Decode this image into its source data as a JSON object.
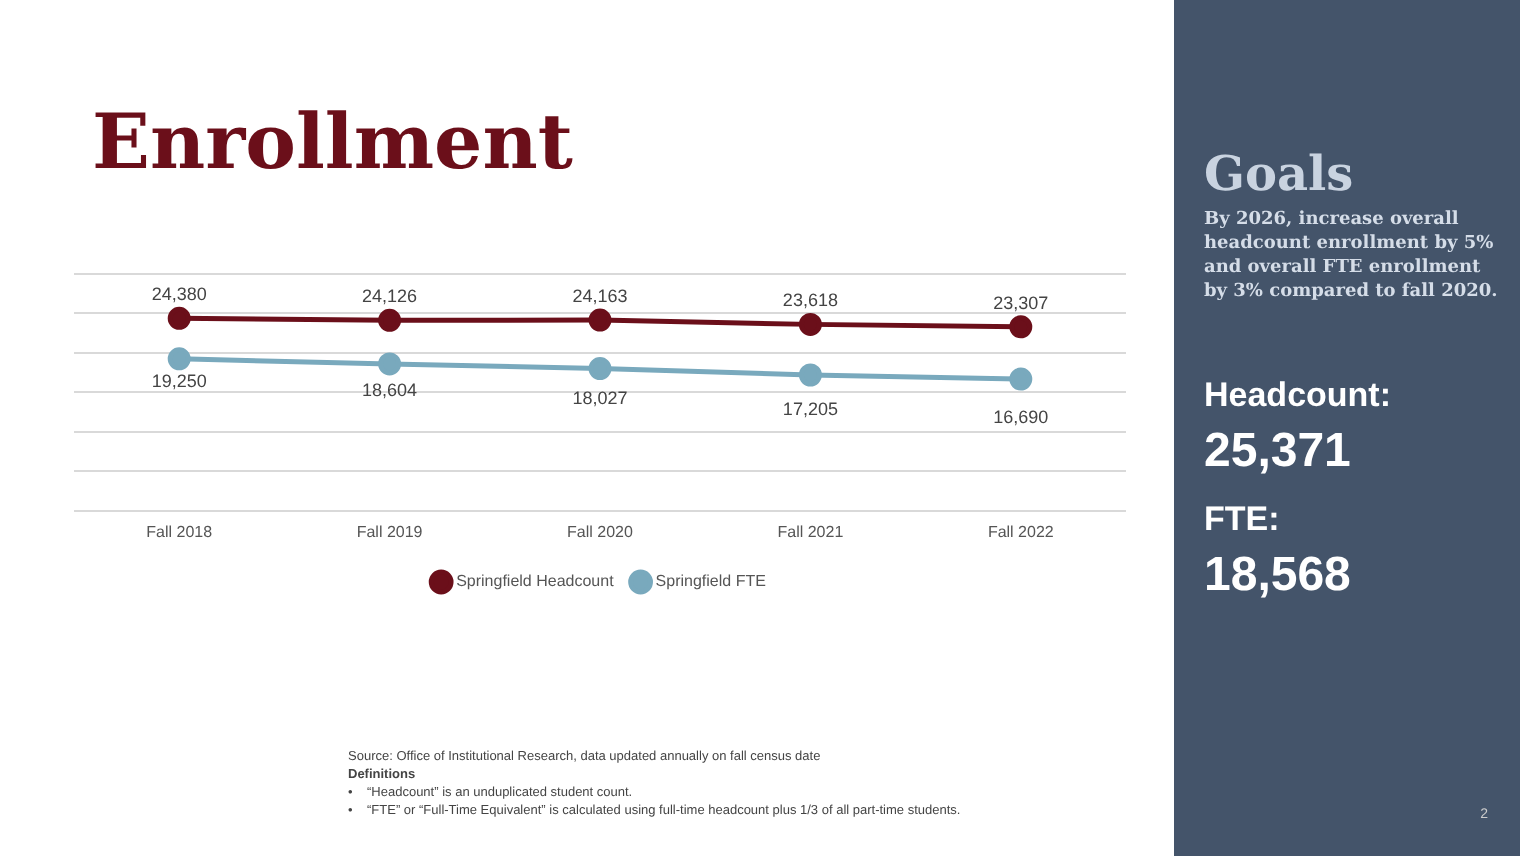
{
  "chart_data": [
    {
      "type": "line",
      "title": "Enrollment",
      "categories": [
        "Fall 2018",
        "Fall 2019",
        "Fall 2020",
        "Fall 2021",
        "Fall 2022"
      ],
      "series": [
        {
          "name": "Springfield Headcount",
          "color": "#6b0f1a",
          "values": [
            24380,
            24126,
            24163,
            23618,
            23307
          ],
          "value_labels": [
            "24,380",
            "24,126",
            "24,163",
            "23,618",
            "23,307"
          ]
        },
        {
          "name": "Springfield FTE",
          "color": "#79a9bd",
          "values": [
            19250,
            18604,
            18027,
            17205,
            16690
          ],
          "value_labels": [
            "19,250",
            "18,604",
            "18,027",
            "17,205",
            "16,690"
          ]
        }
      ],
      "ylim": [
        0,
        30000
      ],
      "yticks": [
        {
          "value": 0,
          "label": null
        },
        {
          "value": 5000,
          "label": null
        },
        {
          "value": 10000,
          "label": null
        },
        {
          "value": 15000,
          "label": null
        },
        {
          "value": 20000,
          "label": null
        },
        {
          "value": 25000,
          "label": null
        },
        {
          "value": 30000,
          "label": null
        }
      ],
      "tick_labels": "x",
      "grid": "y",
      "legend": "bottom",
      "marker": "circle",
      "line_style": "solid",
      "annotations": [
        "Source:  Office of Institutional Research, data updated annually on fall census date",
        "Definitions",
        "•    “Headcount” is an unduplicated student count.",
        "•    “FTE” or “Full-Time Equivalent” is calculated using full-time headcount plus 1/3 of all part-time students."
      ]
    },
    {
      "type": "other",
      "title": "Goals",
      "subtitle": "By 2026, increase overall headcount enrollment by 5% and overall FTE enrollment by 3% compared to fall 2020.",
      "annotations": [
        "Headcount:",
        "25,371",
        "FTE:",
        "18,568",
        "2"
      ]
    }
  ]
}
